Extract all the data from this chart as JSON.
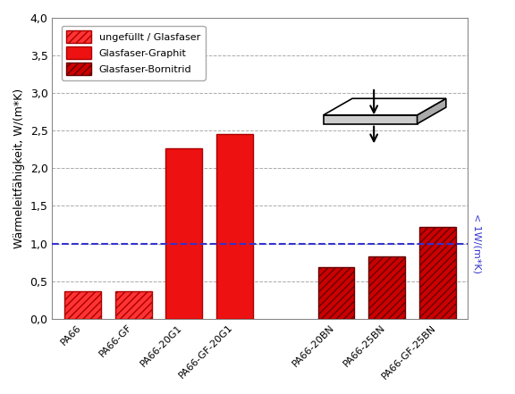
{
  "categories": [
    "PA66",
    "PA66-GF",
    "PA66-20G1",
    "PA66-GF-20G1",
    "PA66-20BN",
    "PA66-25BN",
    "PA66-GF-25BN"
  ],
  "x_positions": [
    0,
    1,
    2,
    3,
    5,
    6,
    7
  ],
  "values": [
    0.37,
    0.37,
    2.27,
    2.45,
    0.68,
    0.83,
    1.22
  ],
  "bar_colors_face": [
    "#FF3333",
    "#FF3333",
    "#EE1111",
    "#EE1111",
    "#CC0000",
    "#CC0000",
    "#CC0000"
  ],
  "bar_colors_edge": [
    "#AA0000",
    "#AA0000",
    "#AA0000",
    "#AA0000",
    "#660000",
    "#660000",
    "#660000"
  ],
  "hatch_patterns": [
    "////",
    "////",
    "",
    "",
    "////",
    "////",
    "////"
  ],
  "ylabel": "Wärmeleitfähigkeit, W/(m*K)",
  "ylim": [
    0,
    4.0
  ],
  "yticks": [
    0.0,
    0.5,
    1.0,
    1.5,
    2.0,
    2.5,
    3.0,
    3.5,
    4.0
  ],
  "ytick_labels": [
    "0,0",
    "0,5",
    "1,0",
    "1,5",
    "2,0",
    "2,5",
    "3,0",
    "3,5",
    "4,0"
  ],
  "dashed_line_y": 1.0,
  "dashed_line_color": "#3333CC",
  "annotation_text": "< 1W/(m*K)",
  "annotation_color": "#3333CC",
  "legend_labels": [
    "ungefüllt / Glasfaser",
    "Glasfaser-Graphit",
    "Glasfaser-Bornitrid"
  ],
  "legend_facecolors": [
    "#FF3333",
    "#EE1111",
    "#CC0000"
  ],
  "legend_edgecolors": [
    "#AA0000",
    "#AA0000",
    "#660000"
  ],
  "legend_hatches": [
    "////",
    "",
    "////"
  ],
  "background_color": "#FFFFFF",
  "grid_color": "#AAAAAA",
  "bar_width": 0.72
}
